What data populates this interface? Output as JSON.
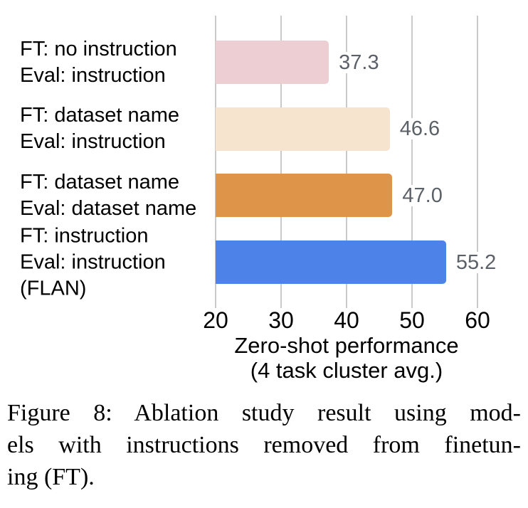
{
  "chart_data": {
    "type": "bar",
    "orientation": "horizontal",
    "title": "",
    "xlabel": "Zero-shot performance",
    "xlabel_sub": "(4 task cluster avg.)",
    "xlim": [
      20,
      60
    ],
    "xticks": [
      20,
      30,
      40,
      50,
      60
    ],
    "grid": "vertical-gridlines-at-xticks",
    "legend": "none",
    "categories": [
      [
        "FT: no instruction",
        "Eval: instruction"
      ],
      [
        "FT: dataset name",
        "Eval: instruction"
      ],
      [
        "FT: dataset name",
        "Eval: dataset name"
      ],
      [
        "FT: instruction",
        "Eval: instruction",
        "(FLAN)"
      ]
    ],
    "values": [
      37.3,
      46.6,
      47.0,
      55.2
    ],
    "value_labels": [
      "37.3",
      "46.6",
      "47.0",
      "55.2"
    ],
    "bar_colors": [
      "#edced2",
      "#f7e4cf",
      "#de9549",
      "#4d83e8"
    ],
    "colors": {
      "value_label": "#5c6168",
      "gridline": "#c9c9c9",
      "axis_text": "#000000"
    }
  },
  "caption": {
    "label": "Figure 8:",
    "line1": "Figure 8:  Ablation study result using mod-",
    "line2": "els with instructions removed from finetun-",
    "line3": "ing (FT)."
  }
}
